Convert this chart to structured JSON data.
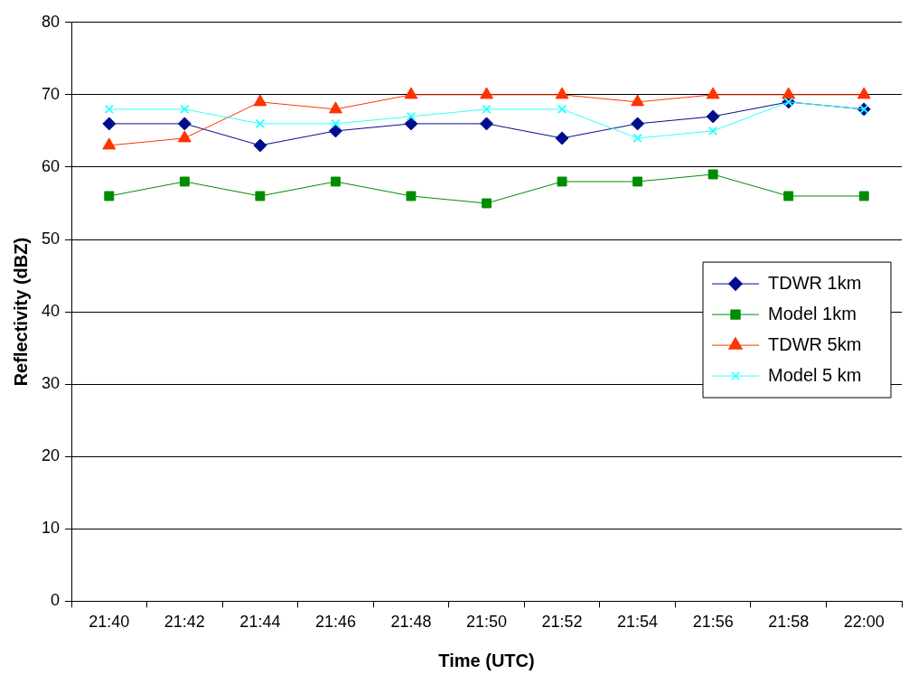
{
  "chart_data": {
    "type": "line",
    "xlabel": "Time (UTC)",
    "ylabel": "Reflectivity (dBZ)",
    "categories": [
      "21:40",
      "21:42",
      "21:44",
      "21:46",
      "21:48",
      "21:50",
      "21:52",
      "21:54",
      "21:56",
      "21:58",
      "22:00"
    ],
    "series": [
      {
        "name": "TDWR 1km",
        "color": "#000e8c",
        "marker": "diamond",
        "values": [
          66,
          66,
          63,
          65,
          66,
          66,
          64,
          66,
          67,
          69,
          68
        ]
      },
      {
        "name": "Model 1km",
        "color": "#008c00",
        "marker": "square",
        "values": [
          56,
          58,
          56,
          58,
          56,
          55,
          58,
          58,
          59,
          56,
          56
        ]
      },
      {
        "name": "TDWR 5km",
        "color": "#ff3300",
        "marker": "triangle",
        "values": [
          63,
          64,
          69,
          68,
          70,
          70,
          70,
          69,
          70,
          70,
          70
        ]
      },
      {
        "name": "Model 5 km",
        "color": "#33ffff",
        "marker": "cross",
        "values": [
          68,
          68,
          66,
          66,
          67,
          68,
          68,
          64,
          65,
          69,
          68
        ]
      }
    ],
    "ylim": [
      0,
      80
    ],
    "yticks": [
      0,
      10,
      20,
      30,
      40,
      50,
      60,
      70,
      80
    ],
    "grid": "y",
    "legend": "right"
  }
}
